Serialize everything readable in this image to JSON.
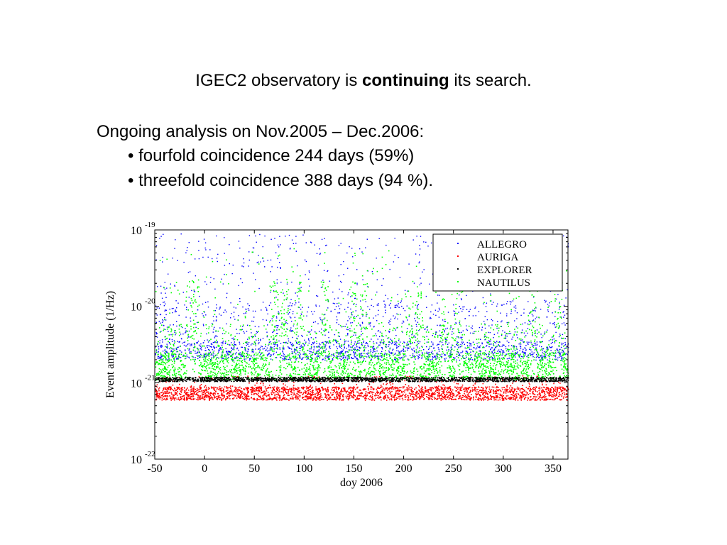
{
  "slide": {
    "title_pre": "IGEC2 observatory is ",
    "title_bold": "continuing",
    "title_post": " its search.",
    "analysis_heading": "Ongoing analysis on Nov.2005 – Dec.2006:",
    "bullets": [
      "• fourfold coincidence 244 days (59%)",
      "• threefold coincidence 388 days (94 %)."
    ]
  },
  "chart_data": {
    "type": "scatter",
    "title": "",
    "xlabel": "doy 2006",
    "ylabel": "Event amplitude (1/Hz)",
    "xlim": [
      -50,
      365
    ],
    "ylim": [
      1e-22,
      1e-19
    ],
    "yscale": "log",
    "grid": false,
    "legend_position": "top-right",
    "x_ticks": [
      "-50",
      "0",
      "50",
      "100",
      "150",
      "200",
      "250",
      "300",
      "350"
    ],
    "x_tick_values": [
      -50,
      0,
      50,
      100,
      150,
      200,
      250,
      300,
      350
    ],
    "y_ticks": [
      {
        "base": "10",
        "exp": "-19",
        "value": 1e-19
      },
      {
        "base": "10",
        "exp": "-20",
        "value": 1e-20
      },
      {
        "base": "10",
        "exp": "-21",
        "value": 1e-21
      },
      {
        "base": "10",
        "exp": "-22",
        "value": 1e-22
      }
    ],
    "series": [
      {
        "name": "ALLEGRO",
        "color": "#0000ff",
        "marker": "dot",
        "floor": 2.5e-21,
        "band": [
          2e-21,
          3.5e-21
        ],
        "ceiling": 9e-20,
        "note_sparse_high": true
      },
      {
        "name": "AURIGA",
        "color": "#ff0000",
        "marker": "dot",
        "band": [
          6e-22,
          9e-22
        ]
      },
      {
        "name": "EXPLORER",
        "color": "#000000",
        "marker": "dot",
        "band": [
          1.05e-21,
          1.2e-21
        ]
      },
      {
        "name": "NAUTILUS",
        "color": "#00ff00",
        "marker": "dot",
        "floor": 1.2e-21,
        "band": [
          1.1e-21,
          2.5e-21
        ],
        "ceiling": 6e-20
      }
    ],
    "notable_bursts_doy": [
      -15,
      -10,
      70,
      80,
      95,
      120,
      150,
      160,
      205,
      215,
      240,
      255,
      330,
      355
    ]
  }
}
